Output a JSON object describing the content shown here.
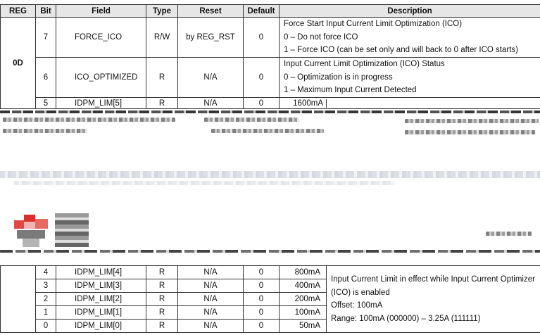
{
  "headers": {
    "reg": "REG",
    "bit": "Bit",
    "field": "Field",
    "type": "Type",
    "reset": "Reset",
    "default": "Default",
    "description": "Description"
  },
  "top": {
    "reg": "0D",
    "rows": [
      {
        "bit": "7",
        "field": "FORCE_ICO",
        "type": "R/W",
        "reset": "by REG_RST",
        "default": "0",
        "desc": [
          "Force Start Input Current Limit Optimization (ICO)",
          "0 – Do not force ICO",
          "1 – Force ICO (can be set only and will back to 0 after ICO starts)"
        ]
      },
      {
        "bit": "6",
        "field": "ICO_OPTIMIZED",
        "type": "R",
        "reset": "N/A",
        "default": "0",
        "desc": [
          "Input Current Limit Optimization (ICO) Status",
          "0 – Optimization is in progress",
          "1 – Maximum Input Current Detected"
        ]
      },
      {
        "bit": "5",
        "field": "IDPM_LIM[5]",
        "type": "R",
        "reset": "N/A",
        "default": "0",
        "value": "1600mA"
      }
    ]
  },
  "bottom": {
    "rows": [
      {
        "bit": "4",
        "field": "IDPM_LIM[4]",
        "type": "R",
        "reset": "N/A",
        "default": "0",
        "value": "800mA"
      },
      {
        "bit": "3",
        "field": "IDPM_LIM[3]",
        "type": "R",
        "reset": "N/A",
        "default": "0",
        "value": "400mA"
      },
      {
        "bit": "2",
        "field": "IDPM_LIM[2]",
        "type": "R",
        "reset": "N/A",
        "default": "0",
        "value": "200mA"
      },
      {
        "bit": "1",
        "field": "IDPM_LIM[1]",
        "type": "R",
        "reset": "N/A",
        "default": "0",
        "value": "100mA"
      },
      {
        "bit": "0",
        "field": "IDPM_LIM[0]",
        "type": "R",
        "reset": "N/A",
        "default": "0",
        "value": "50mA"
      }
    ],
    "desc": [
      "Input Current Limit in effect while Input Current Optimizer",
      "(ICO) is enabled",
      "Offset: 100mA",
      "Range: 100mA (000000) – 3.25A (111111)"
    ]
  },
  "colors": {
    "header_bg": "#e6e6e6",
    "border": "#333333",
    "logo_red": "#d9302b"
  }
}
